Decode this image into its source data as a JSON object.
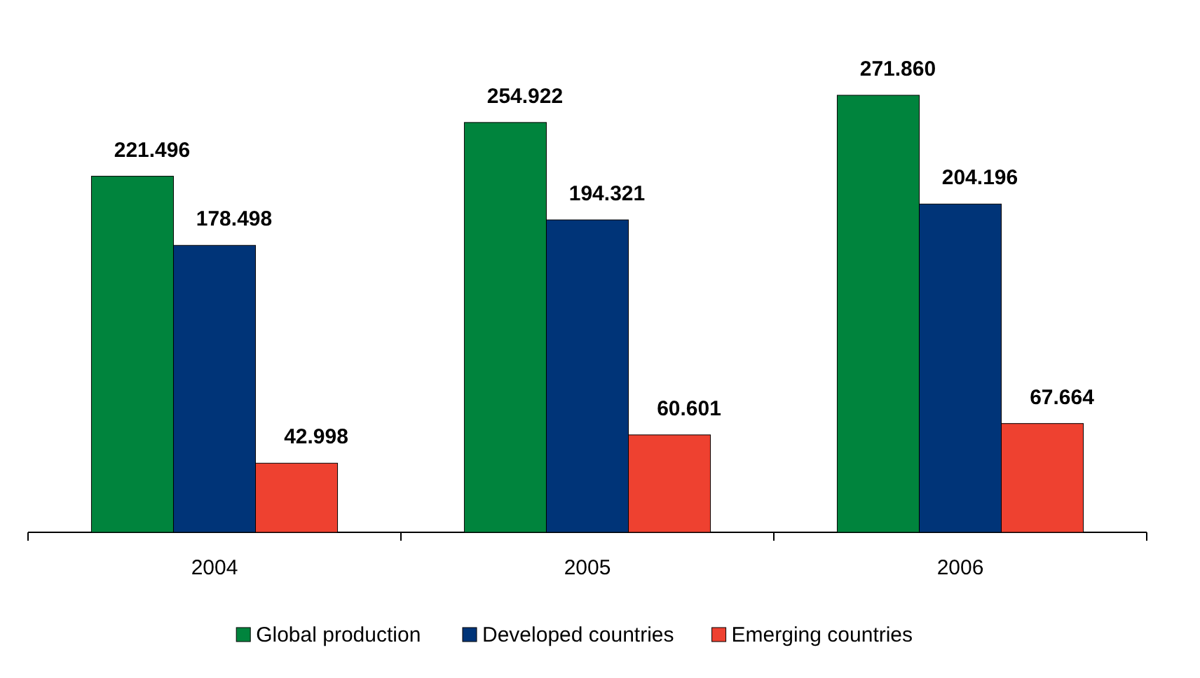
{
  "chart_data": {
    "type": "bar",
    "categories": [
      "2004",
      "2005",
      "2006"
    ],
    "series": [
      {
        "name": "Global production",
        "color": "#00843d",
        "values": [
          221.496,
          254.922,
          271.86
        ],
        "value_labels": [
          "221.496",
          "254.922",
          "271.860"
        ]
      },
      {
        "name": "Developed countries",
        "color": "#003478",
        "values": [
          178.498,
          194.321,
          204.196
        ],
        "value_labels": [
          "178.498",
          "194.321",
          "204.196"
        ]
      },
      {
        "name": "Emerging countries",
        "color": "#ee4130",
        "values": [
          42.998,
          60.601,
          67.664
        ],
        "value_labels": [
          "42.998",
          "60.601",
          "67.664"
        ]
      }
    ],
    "legend": "bottom",
    "grid": false
  }
}
